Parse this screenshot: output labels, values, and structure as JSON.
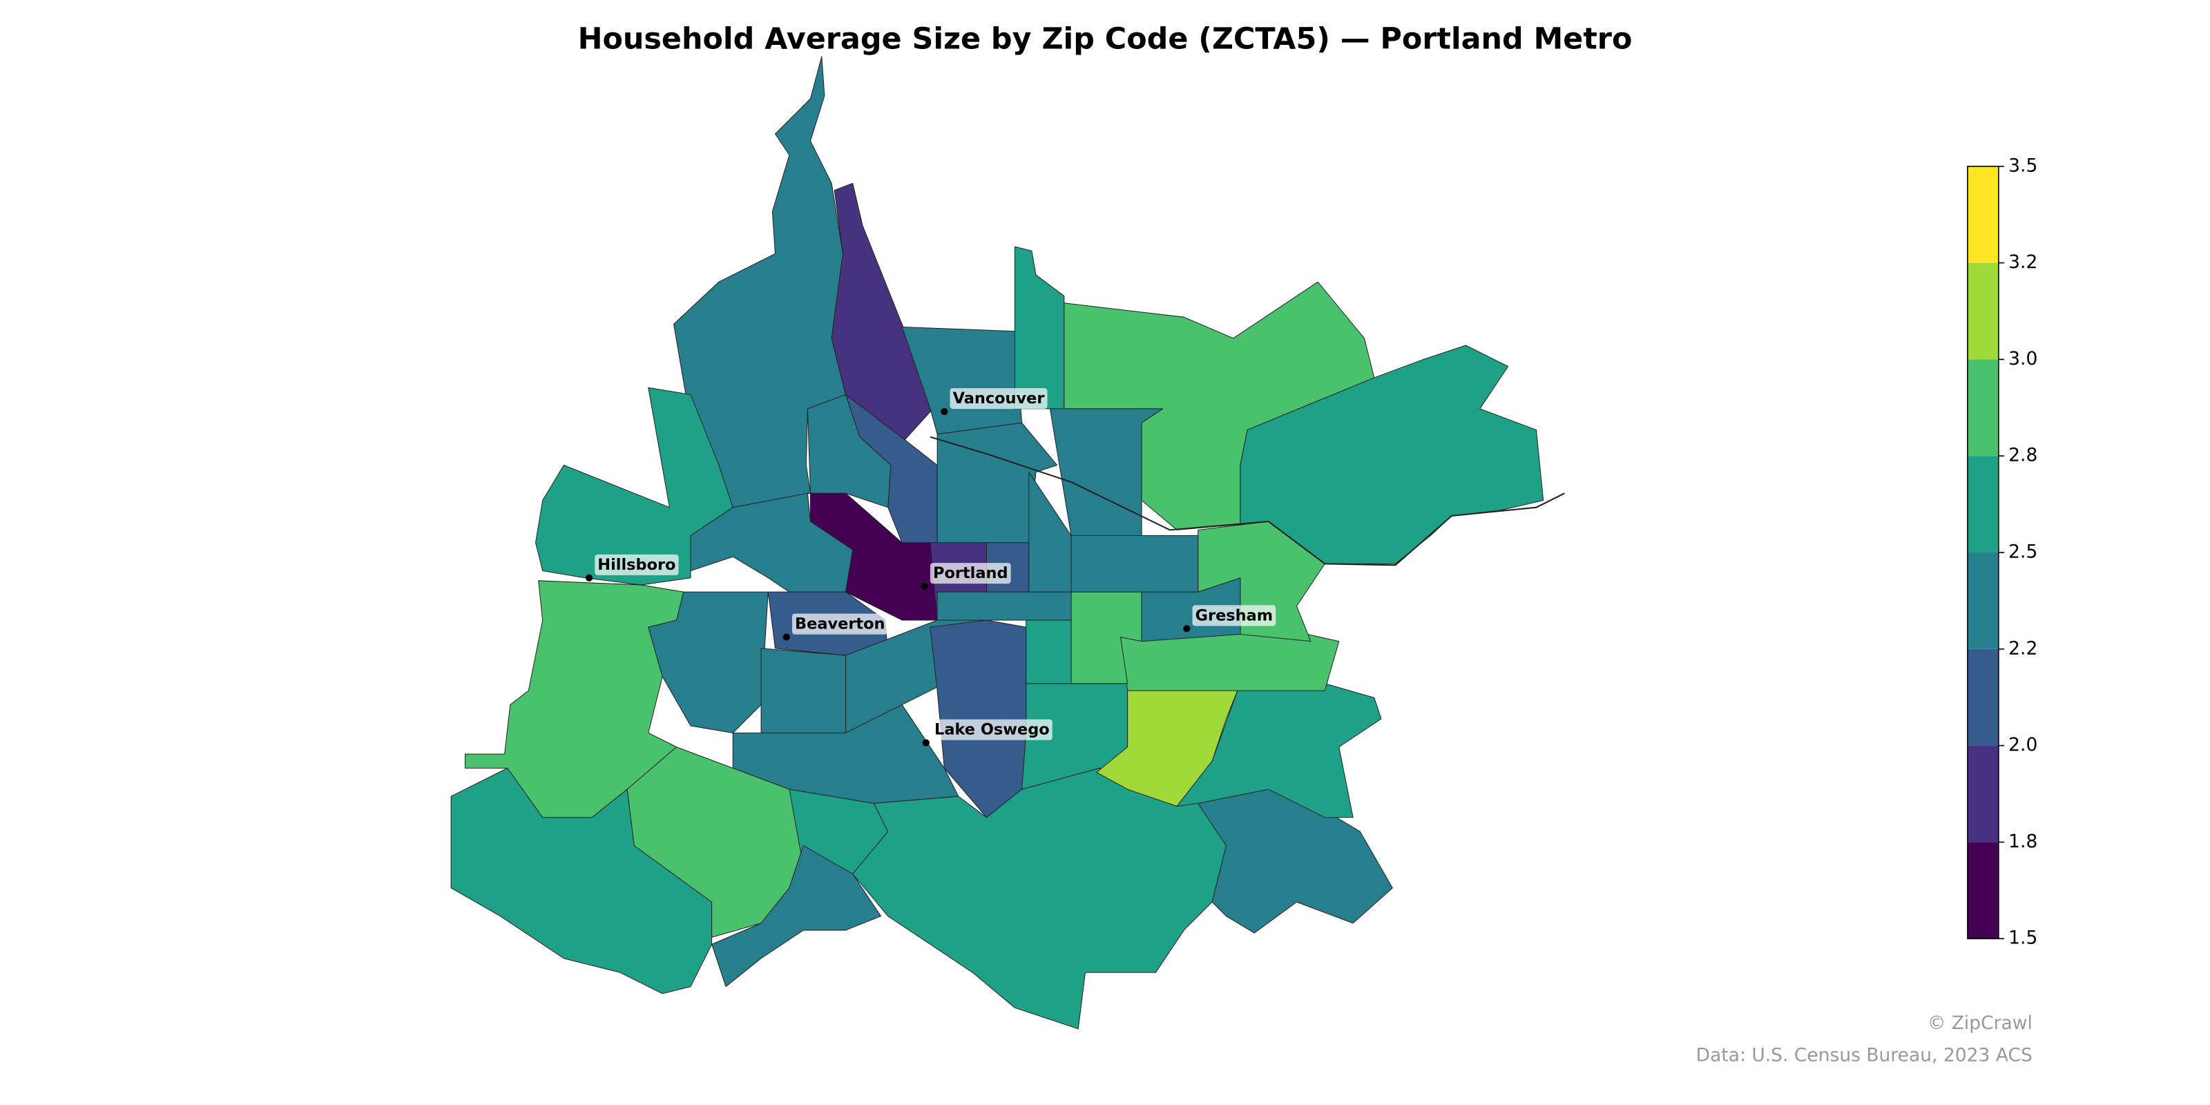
{
  "title": "Household Average Size by Zip Code (ZCTA5) — Portland Metro",
  "cities": [
    "Vancouver",
    "Hillsboro",
    "Portland",
    "Beaverton",
    "Gresham",
    "Lake Oswego"
  ],
  "regions": {
    "values": [
      2.4,
      1.9,
      2.4,
      2.6,
      2.9,
      2.6,
      2.4,
      2.1,
      2.4,
      2.4,
      2.6,
      2.9,
      2.4,
      2.4,
      2.1,
      2.4,
      2.4,
      2.1,
      2.4,
      2.6,
      2.9,
      2.6,
      2.4,
      2.6,
      2.4,
      2.6,
      3.1,
      2.6,
      2.9,
      2.4,
      2.9,
      2.9,
      2.6,
      1.6,
      1.9,
      2.1,
      2.4,
      2.4,
      2.4
    ]
  },
  "colorbar": {
    "lim": [
      1.5,
      3.5
    ],
    "colors": [
      "#440154",
      "#46327e",
      "#365c8d",
      "#277f8e",
      "#1fa187",
      "#4ac16d",
      "#a0da39",
      "#fde725"
    ],
    "ticks": [
      1.5,
      {
        "value": 1.75,
        "label": "1.8"
      },
      {
        "value": 2.0,
        "label": "2.0"
      },
      {
        "value": 2.25,
        "label": "2.2"
      },
      2.5,
      {
        "value": 2.75,
        "label": "2.8"
      },
      {
        "value": 3.0,
        "label": "3.0"
      },
      {
        "value": 3.25,
        "label": "3.2"
      },
      3.5
    ]
  },
  "credits": [
    "© ZipCrawl",
    "Data: U.S. Census Bureau, 2023 ACS"
  ]
}
